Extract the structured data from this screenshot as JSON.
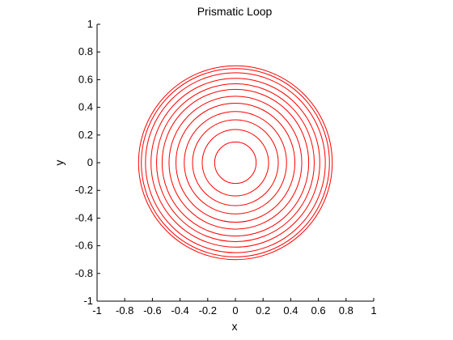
{
  "chart_data": {
    "type": "line",
    "title": "Prismatic Loop",
    "xlabel": "x",
    "ylabel": "y",
    "xlim": [
      -1,
      1
    ],
    "ylim": [
      -1,
      1
    ],
    "grid": false,
    "box": false,
    "equal_aspect": true,
    "line_color": "#ff0000",
    "x_ticks": [
      -1,
      -0.8,
      -0.6,
      -0.4,
      -0.2,
      0,
      0.2,
      0.4,
      0.6,
      0.8,
      1
    ],
    "y_ticks": [
      -1,
      -0.8,
      -0.6,
      -0.4,
      -0.2,
      0,
      0.2,
      0.4,
      0.6,
      0.8,
      1
    ],
    "x_tick_labels": [
      "-1",
      "-0.8",
      "-0.6",
      "-0.4",
      "-0.2",
      "0",
      "0.2",
      "0.4",
      "0.6",
      "0.8",
      "1"
    ],
    "y_tick_labels": [
      "-1",
      "-0.8",
      "-0.6",
      "-0.4",
      "-0.2",
      "0",
      "0.2",
      "0.4",
      "0.6",
      "0.8",
      "1"
    ],
    "circles": [
      {
        "center": [
          0,
          0
        ],
        "radius": 0.15
      },
      {
        "center": [
          0,
          0
        ],
        "radius": 0.24
      },
      {
        "center": [
          0,
          0
        ],
        "radius": 0.31
      },
      {
        "center": [
          0,
          0
        ],
        "radius": 0.37
      },
      {
        "center": [
          0,
          0
        ],
        "radius": 0.43
      },
      {
        "center": [
          0,
          0
        ],
        "radius": 0.48
      },
      {
        "center": [
          0,
          0
        ],
        "radius": 0.53
      },
      {
        "center": [
          0,
          0
        ],
        "radius": 0.57
      },
      {
        "center": [
          0,
          0
        ],
        "radius": 0.61
      },
      {
        "center": [
          0,
          0
        ],
        "radius": 0.65
      },
      {
        "center": [
          0,
          0
        ],
        "radius": 0.68
      },
      {
        "center": [
          0,
          0
        ],
        "radius": 0.7
      }
    ]
  }
}
